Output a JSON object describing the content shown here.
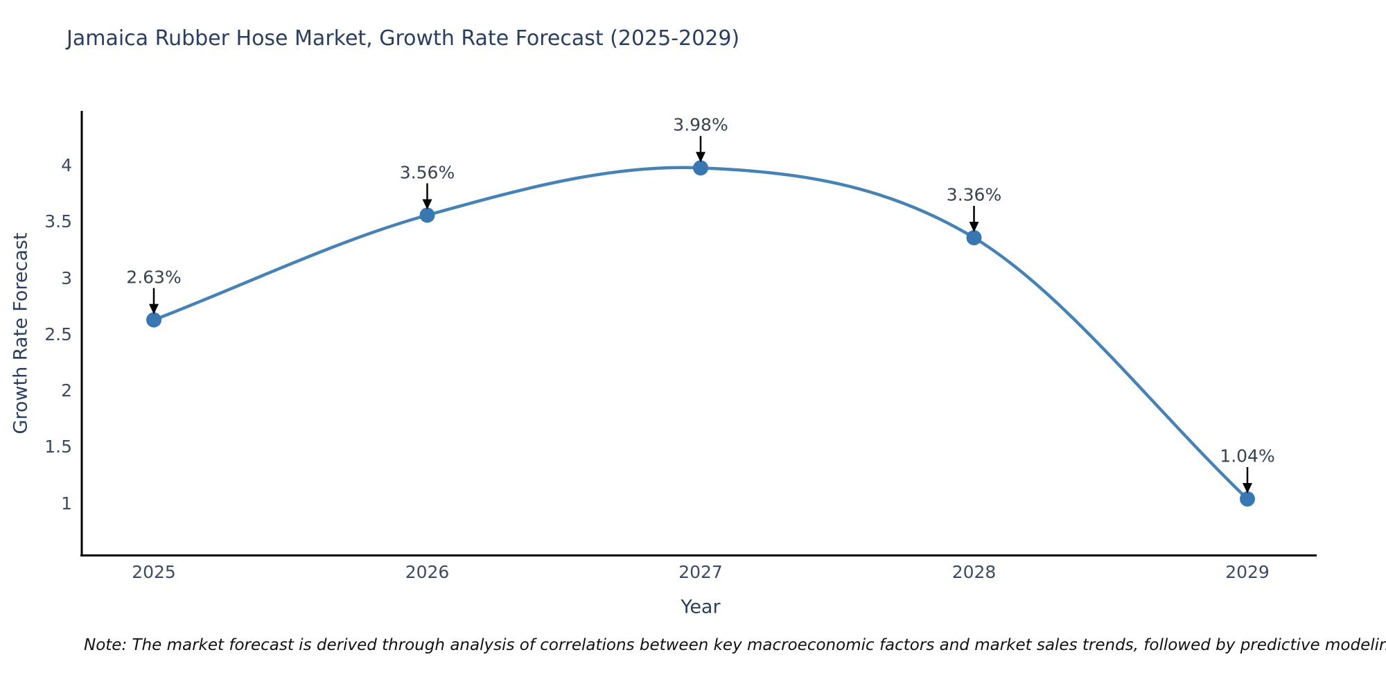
{
  "chart_data": {
    "type": "line",
    "title": "Jamaica Rubber Hose Market, Growth Rate Forecast (2025-2029)",
    "xlabel": "Year",
    "ylabel": "Growth Rate Forecast",
    "categories": [
      "2025",
      "2026",
      "2027",
      "2028",
      "2029"
    ],
    "series": [
      {
        "name": "Growth Rate Forecast",
        "values": [
          2.63,
          3.56,
          3.98,
          3.36,
          1.04
        ]
      }
    ],
    "point_labels": [
      "2.63%",
      "3.56%",
      "3.98%",
      "3.36%",
      "1.04%"
    ],
    "y_ticks": [
      1,
      1.5,
      2,
      2.5,
      3,
      3.5,
      4
    ],
    "ylim": [
      0.55,
      4.5
    ],
    "grid": false,
    "legend_position": "none",
    "line_color": "#4682b4",
    "marker_color": "#3977b3",
    "axis_color": "#000000",
    "arrow_color": "#000000",
    "note": "Note: The market forecast is derived through analysis of correlations between key macroeconomic factors and market sales trends, followed by predictive modeling to project future sales"
  }
}
